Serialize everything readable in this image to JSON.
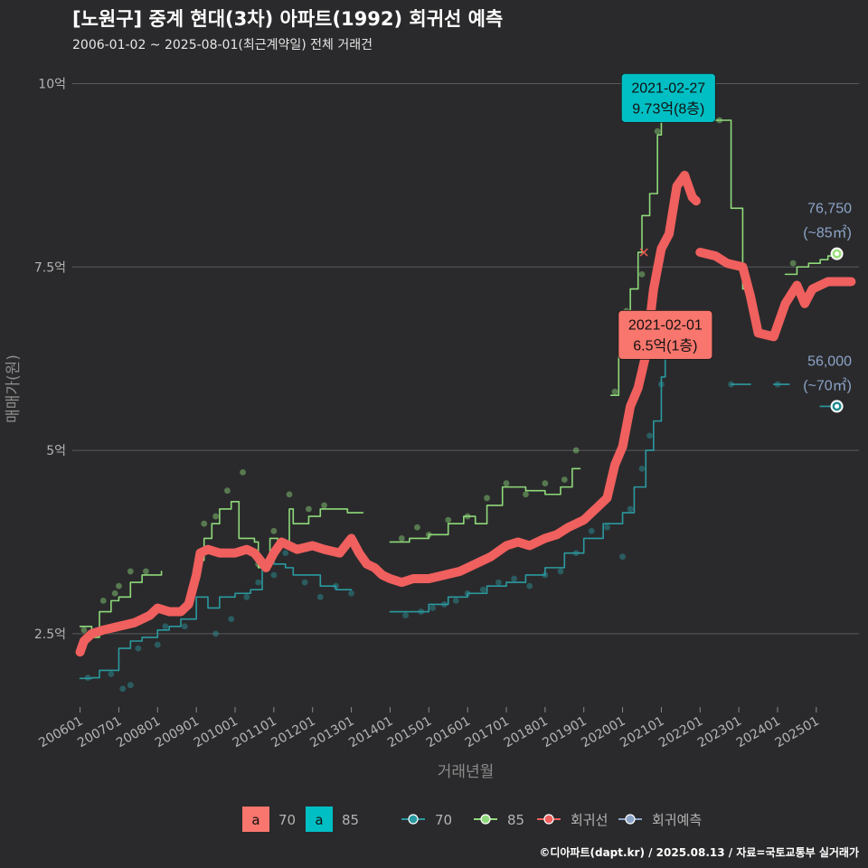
{
  "chart_data": {
    "type": "line",
    "title": "[노원구] 중계 현대(3차) 아파트(1992) 회귀선 예측",
    "subtitle": "2006-01-02 ~ 2025-08-01(최근계약일) 전체 거래건",
    "xlabel": "거래년월",
    "ylabel": "매매가(원)",
    "ylim": [
      1.5,
      10.4
    ],
    "xlim": [
      2005.8,
      2026.1
    ],
    "y_ticks": [
      {
        "value": 2.5,
        "label": "2.5억"
      },
      {
        "value": 5,
        "label": "5억"
      },
      {
        "value": 7.5,
        "label": "7.5억"
      },
      {
        "value": 10,
        "label": "10억"
      }
    ],
    "x_ticks": [
      {
        "value": 2006.0,
        "label": "200601"
      },
      {
        "value": 2007.0,
        "label": "200701"
      },
      {
        "value": 2008.0,
        "label": "200801"
      },
      {
        "value": 2009.0,
        "label": "200901"
      },
      {
        "value": 2010.0,
        "label": "201001"
      },
      {
        "value": 2011.0,
        "label": "201101"
      },
      {
        "value": 2012.0,
        "label": "201201"
      },
      {
        "value": 2013.0,
        "label": "201301"
      },
      {
        "value": 2014.0,
        "label": "201401"
      },
      {
        "value": 2015.0,
        "label": "201501"
      },
      {
        "value": 2016.0,
        "label": "201601"
      },
      {
        "value": 2017.0,
        "label": "201701"
      },
      {
        "value": 2018.0,
        "label": "201801"
      },
      {
        "value": 2019.0,
        "label": "201901"
      },
      {
        "value": 2020.0,
        "label": "202001"
      },
      {
        "value": 2021.0,
        "label": "202101"
      },
      {
        "value": 2022.0,
        "label": "202201"
      },
      {
        "value": 2023.0,
        "label": "202301"
      },
      {
        "value": 2024.0,
        "label": "202401"
      },
      {
        "value": 2025.0,
        "label": "202501"
      }
    ],
    "series": [
      {
        "name": "70",
        "color": "#2a9aa0",
        "points": [
          [
            2006.0,
            1.89
          ],
          [
            2006.3,
            1.9
          ],
          [
            2006.5,
            2.0
          ],
          [
            2006.8,
            2.0
          ],
          [
            2007.0,
            2.3
          ],
          [
            2007.3,
            2.4
          ],
          [
            2007.6,
            2.45
          ],
          [
            2008.0,
            2.55
          ],
          [
            2008.3,
            2.6
          ],
          [
            2008.6,
            2.7
          ],
          [
            2009.0,
            3.0
          ],
          [
            2009.3,
            2.85
          ],
          [
            2009.6,
            3.0
          ],
          [
            2010.0,
            3.05
          ],
          [
            2010.4,
            3.1
          ],
          [
            2010.7,
            3.5
          ],
          [
            2011.0,
            3.45
          ],
          [
            2011.3,
            3.4
          ],
          [
            2011.5,
            3.3
          ],
          [
            2011.8,
            3.3
          ],
          [
            2012.2,
            3.15
          ],
          [
            2012.6,
            3.1
          ],
          [
            2013.0,
            3.1
          ],
          null,
          [
            2014.0,
            2.8
          ],
          [
            2014.5,
            2.8
          ],
          [
            2015.0,
            2.9
          ],
          [
            2015.5,
            3.0
          ],
          [
            2016.0,
            3.05
          ],
          [
            2016.5,
            3.15
          ],
          [
            2017.0,
            3.2
          ],
          [
            2017.5,
            3.3
          ],
          [
            2018.0,
            3.4
          ],
          [
            2018.5,
            3.6
          ],
          [
            2019.0,
            3.8
          ],
          [
            2019.5,
            4.0
          ],
          [
            2020.0,
            4.15
          ],
          [
            2020.3,
            4.5
          ],
          [
            2020.6,
            5.0
          ],
          [
            2020.8,
            5.4
          ],
          [
            2021.0,
            6.0
          ],
          [
            2021.1,
            6.5
          ],
          [
            2021.4,
            6.5
          ],
          null,
          [
            2022.8,
            5.9
          ],
          [
            2023.3,
            5.9
          ],
          null,
          [
            2023.9,
            5.9
          ],
          [
            2024.3,
            5.9
          ],
          null,
          [
            2025.1,
            5.6
          ],
          [
            2025.5,
            5.6
          ]
        ]
      },
      {
        "name": "85",
        "color": "#8fd97a",
        "points": [
          [
            2006.0,
            2.6
          ],
          [
            2006.3,
            2.45
          ],
          [
            2006.5,
            2.8
          ],
          [
            2006.8,
            2.95
          ],
          [
            2007.0,
            3.0
          ],
          [
            2007.3,
            3.2
          ],
          [
            2007.6,
            3.3
          ],
          [
            2007.9,
            3.3
          ],
          [
            2008.1,
            3.35
          ],
          null,
          [
            2009.0,
            3.5
          ],
          [
            2009.2,
            3.8
          ],
          [
            2009.4,
            4.0
          ],
          [
            2009.6,
            4.2
          ],
          [
            2009.9,
            4.3
          ],
          [
            2010.1,
            3.8
          ],
          [
            2010.5,
            3.75
          ],
          [
            2010.6,
            3.4
          ],
          [
            2010.9,
            3.8
          ],
          [
            2011.1,
            3.75
          ],
          [
            2011.4,
            4.2
          ],
          [
            2011.5,
            4.0
          ],
          [
            2011.9,
            4.1
          ],
          [
            2012.2,
            4.2
          ],
          [
            2012.5,
            4.2
          ],
          [
            2012.9,
            4.15
          ],
          [
            2013.3,
            4.15
          ],
          null,
          [
            2014.0,
            3.75
          ],
          [
            2014.5,
            3.8
          ],
          [
            2015.0,
            3.85
          ],
          [
            2015.5,
            4.0
          ],
          [
            2015.9,
            4.1
          ],
          [
            2016.2,
            4.0
          ],
          [
            2016.5,
            4.25
          ],
          [
            2016.9,
            4.5
          ],
          [
            2017.2,
            4.5
          ],
          [
            2017.5,
            4.45
          ],
          [
            2018.0,
            4.4
          ],
          [
            2018.4,
            4.5
          ],
          [
            2018.7,
            4.75
          ],
          [
            2018.9,
            4.75
          ],
          null,
          [
            2019.7,
            5.75
          ],
          [
            2019.9,
            6.5
          ],
          [
            2020.0,
            6.9
          ],
          [
            2020.2,
            7.2
          ],
          [
            2020.4,
            7.7
          ],
          [
            2020.5,
            8.2
          ],
          [
            2020.7,
            8.5
          ],
          [
            2020.9,
            9.3
          ],
          [
            2021.0,
            9.55
          ],
          [
            2021.2,
            9.75
          ],
          [
            2021.4,
            9.75
          ],
          null,
          [
            2022.4,
            9.5
          ],
          [
            2022.7,
            9.5
          ],
          [
            2022.8,
            8.3
          ],
          [
            2023.0,
            8.3
          ],
          [
            2023.1,
            7.2
          ],
          [
            2023.3,
            7.2
          ],
          null,
          [
            2024.2,
            7.4
          ],
          [
            2024.5,
            7.5
          ],
          [
            2024.8,
            7.55
          ],
          [
            2025.1,
            7.6
          ],
          [
            2025.3,
            7.65
          ],
          [
            2025.5,
            7.68
          ]
        ]
      },
      {
        "name": "회귀선",
        "color": "#f0605e",
        "points": [
          [
            2006.0,
            2.25
          ],
          [
            2006.1,
            2.4
          ],
          [
            2006.3,
            2.5
          ],
          [
            2006.6,
            2.55
          ],
          [
            2007.0,
            2.6
          ],
          [
            2007.4,
            2.65
          ],
          [
            2007.8,
            2.75
          ],
          [
            2008.0,
            2.85
          ],
          [
            2008.3,
            2.8
          ],
          [
            2008.6,
            2.8
          ],
          [
            2008.8,
            2.9
          ],
          [
            2009.0,
            3.3
          ],
          [
            2009.1,
            3.6
          ],
          [
            2009.3,
            3.65
          ],
          [
            2009.6,
            3.6
          ],
          [
            2010.0,
            3.6
          ],
          [
            2010.3,
            3.65
          ],
          [
            2010.5,
            3.6
          ],
          [
            2010.8,
            3.4
          ],
          [
            2011.0,
            3.6
          ],
          [
            2011.2,
            3.75
          ],
          [
            2011.6,
            3.65
          ],
          [
            2012.0,
            3.7
          ],
          [
            2012.3,
            3.65
          ],
          [
            2012.7,
            3.6
          ],
          [
            2013.0,
            3.8
          ],
          [
            2013.2,
            3.6
          ],
          [
            2013.4,
            3.45
          ],
          [
            2013.6,
            3.4
          ],
          [
            2013.8,
            3.3
          ],
          [
            2014.0,
            3.25
          ],
          [
            2014.3,
            3.2
          ],
          [
            2014.6,
            3.25
          ],
          [
            2015.0,
            3.25
          ],
          [
            2015.4,
            3.3
          ],
          [
            2015.8,
            3.35
          ],
          [
            2016.2,
            3.45
          ],
          [
            2016.6,
            3.55
          ],
          [
            2017.0,
            3.7
          ],
          [
            2017.3,
            3.75
          ],
          [
            2017.6,
            3.7
          ],
          [
            2018.0,
            3.8
          ],
          [
            2018.3,
            3.85
          ],
          [
            2018.6,
            3.95
          ],
          [
            2019.0,
            4.05
          ],
          [
            2019.3,
            4.2
          ],
          [
            2019.6,
            4.35
          ],
          [
            2019.8,
            4.8
          ],
          [
            2020.0,
            5.05
          ],
          [
            2020.2,
            5.6
          ],
          [
            2020.4,
            5.85
          ],
          [
            2020.6,
            6.3
          ],
          [
            2020.8,
            7.2
          ],
          [
            2021.0,
            7.75
          ],
          [
            2021.2,
            7.95
          ],
          [
            2021.4,
            8.6
          ],
          [
            2021.6,
            8.75
          ],
          [
            2021.8,
            8.45
          ],
          [
            2021.9,
            8.4
          ],
          null,
          [
            2022.0,
            7.7
          ],
          [
            2022.4,
            7.65
          ],
          [
            2022.7,
            7.55
          ],
          [
            2023.1,
            7.5
          ],
          [
            2023.3,
            7.1
          ],
          [
            2023.5,
            6.6
          ],
          [
            2023.9,
            6.55
          ],
          [
            2024.2,
            7.0
          ],
          [
            2024.5,
            7.25
          ],
          [
            2024.7,
            7.0
          ],
          [
            2024.9,
            7.2
          ],
          [
            2025.3,
            7.3
          ],
          [
            2025.6,
            7.3
          ],
          [
            2025.9,
            7.3
          ]
        ]
      }
    ],
    "points_70": [
      [
        2006.2,
        1.9
      ],
      [
        2006.8,
        1.95
      ],
      [
        2007.1,
        1.75
      ],
      [
        2007.3,
        1.8
      ],
      [
        2007.5,
        2.3
      ],
      [
        2008.0,
        2.35
      ],
      [
        2008.2,
        2.6
      ],
      [
        2008.7,
        2.6
      ],
      [
        2009.5,
        2.5
      ],
      [
        2009.9,
        2.7
      ],
      [
        2010.3,
        3.0
      ],
      [
        2010.6,
        3.2
      ],
      [
        2011.0,
        3.3
      ],
      [
        2011.3,
        3.6
      ],
      [
        2011.8,
        3.2
      ],
      [
        2012.2,
        3.0
      ],
      [
        2012.6,
        3.15
      ],
      [
        2013.0,
        3.05
      ],
      [
        2014.4,
        2.75
      ],
      [
        2014.8,
        2.8
      ],
      [
        2015.1,
        2.85
      ],
      [
        2015.4,
        2.9
      ],
      [
        2015.7,
        2.95
      ],
      [
        2016.0,
        3.05
      ],
      [
        2016.4,
        3.1
      ],
      [
        2016.8,
        3.2
      ],
      [
        2017.2,
        3.25
      ],
      [
        2017.6,
        3.15
      ],
      [
        2018.0,
        3.3
      ],
      [
        2018.4,
        3.35
      ],
      [
        2018.8,
        3.6
      ],
      [
        2019.2,
        3.9
      ],
      [
        2019.6,
        3.95
      ],
      [
        2020.0,
        3.55
      ],
      [
        2020.2,
        4.2
      ],
      [
        2020.5,
        4.75
      ],
      [
        2020.7,
        5.2
      ],
      [
        2021.0,
        5.9
      ],
      [
        2022.8,
        5.9
      ],
      [
        2024.0,
        5.9
      ]
    ],
    "points_85": [
      [
        2006.1,
        2.55
      ],
      [
        2006.6,
        2.95
      ],
      [
        2006.9,
        3.05
      ],
      [
        2007.0,
        3.15
      ],
      [
        2007.3,
        3.35
      ],
      [
        2007.7,
        3.35
      ],
      [
        2009.2,
        4.0
      ],
      [
        2009.5,
        4.1
      ],
      [
        2009.8,
        4.45
      ],
      [
        2010.2,
        4.7
      ],
      [
        2010.6,
        3.45
      ],
      [
        2011.0,
        3.9
      ],
      [
        2011.4,
        4.4
      ],
      [
        2011.9,
        4.2
      ],
      [
        2012.3,
        4.25
      ],
      [
        2014.3,
        3.8
      ],
      [
        2014.7,
        3.95
      ],
      [
        2015.0,
        3.85
      ],
      [
        2015.5,
        4.05
      ],
      [
        2016.0,
        4.1
      ],
      [
        2016.5,
        4.35
      ],
      [
        2017.0,
        4.55
      ],
      [
        2017.5,
        4.4
      ],
      [
        2018.0,
        4.55
      ],
      [
        2018.5,
        4.6
      ],
      [
        2018.8,
        5.0
      ],
      [
        2019.8,
        5.8
      ],
      [
        2020.1,
        6.9
      ],
      [
        2020.5,
        7.4
      ],
      [
        2020.9,
        9.35
      ],
      [
        2021.2,
        9.75
      ],
      [
        2022.5,
        9.5
      ],
      [
        2024.4,
        7.55
      ]
    ],
    "annotations": [
      {
        "line1": "2021-02-27",
        "line2": "9.73억(8층)",
        "x": 2021.16,
        "y": 9.73,
        "color": "#00bfc4"
      },
      {
        "line1": "2021-02-01",
        "line2": "6.5억(1층)",
        "x": 2021.08,
        "y": 6.5,
        "color": "#f8766d"
      }
    ],
    "end_labels": [
      {
        "line1": "76,750",
        "line2": "(~85㎡)",
        "x": 2025.53,
        "y": 7.68,
        "color": "#9be07a"
      },
      {
        "line1": "56,000",
        "line2": "(~70㎡)",
        "x": 2025.53,
        "y": 5.6,
        "color": "#1f8a8f"
      }
    ],
    "cross_marker": {
      "x": 2020.55,
      "y": 7.7
    },
    "legend": {
      "area_items": [
        {
          "key": "a",
          "label": "70",
          "color": "#f8766d"
        },
        {
          "key": "a",
          "label": "85",
          "color": "#00bfc4"
        }
      ],
      "line_items": [
        {
          "label": "70",
          "color": "#2a9aa0"
        },
        {
          "label": "85",
          "color": "#8fd97a"
        },
        {
          "label": "회귀선",
          "color": "#f0605e"
        },
        {
          "label": "회귀예측",
          "color": "#8ba3c7"
        }
      ]
    },
    "caption": "©디아파트(dapt.kr) / 2025.08.13 / 자료=국토교통부 실거래가"
  }
}
